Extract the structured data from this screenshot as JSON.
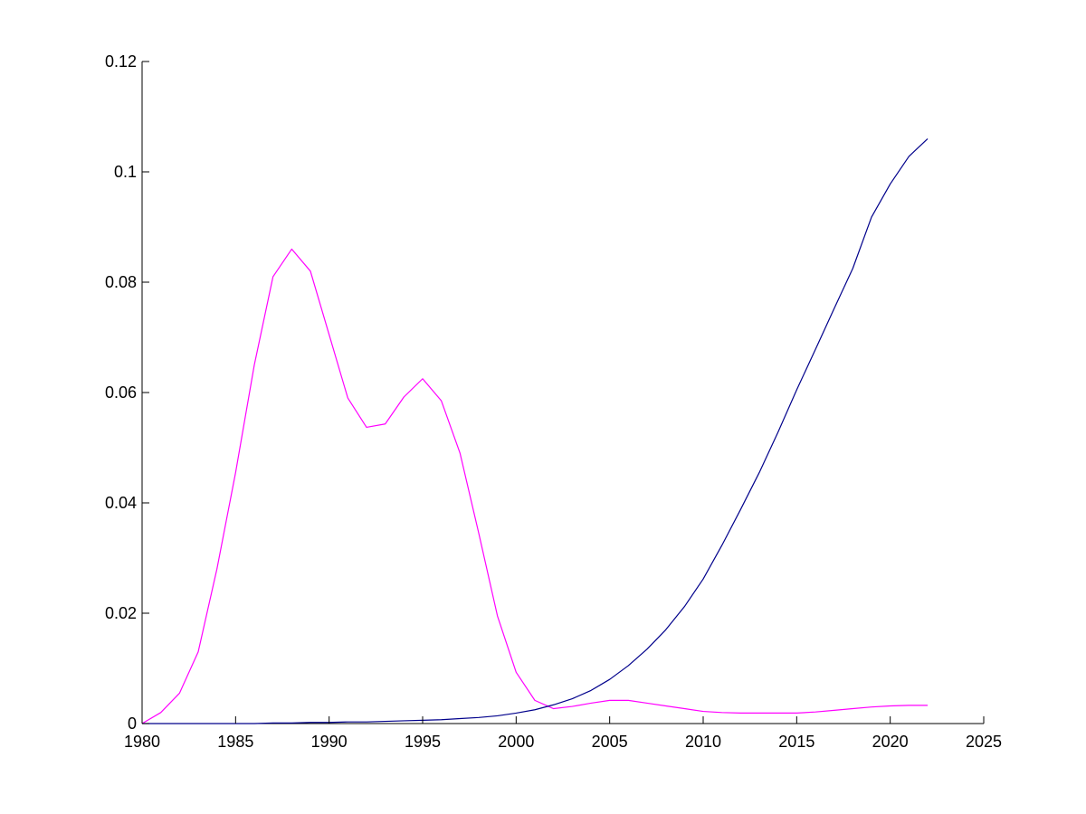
{
  "chart_data": {
    "type": "line",
    "title": "",
    "xlabel": "",
    "ylabel": "",
    "xlim": [
      1980,
      2025
    ],
    "ylim": [
      0,
      0.12
    ],
    "xticks": [
      1980,
      1985,
      1990,
      1995,
      2000,
      2005,
      2010,
      2015,
      2020,
      2025
    ],
    "xtick_labels": [
      "1980",
      "1985",
      "1990",
      "1995",
      "2000",
      "2005",
      "2010",
      "2015",
      "2020",
      "2025"
    ],
    "yticks": [
      0,
      0.02,
      0.04,
      0.06,
      0.08,
      0.1,
      0.12
    ],
    "ytick_labels": [
      "0",
      "0.02",
      "0.04",
      "0.06",
      "0.08",
      "0.1",
      "0.12"
    ],
    "grid": false,
    "legend": "none",
    "series": [
      {
        "color": "#ff00ff",
        "x": [
          1980,
          1981,
          1982,
          1983,
          1984,
          1985,
          1986,
          1987,
          1988,
          1989,
          1990,
          1991,
          1992,
          1993,
          1994,
          1995,
          1996,
          1997,
          1998,
          1999,
          2000,
          2001,
          2002,
          2003,
          2004,
          2005,
          2006,
          2007,
          2008,
          2009,
          2010,
          2011,
          2012,
          2013,
          2014,
          2015,
          2016,
          2017,
          2018,
          2019,
          2020,
          2021,
          2022
        ],
        "y": [
          0.0,
          0.002,
          0.0055,
          0.013,
          0.028,
          0.0455,
          0.065,
          0.081,
          0.086,
          0.082,
          0.0705,
          0.059,
          0.0537,
          0.0543,
          0.0592,
          0.0625,
          0.0585,
          0.049,
          0.0345,
          0.0195,
          0.0093,
          0.0042,
          0.0027,
          0.0031,
          0.0037,
          0.0042,
          0.0042,
          0.0037,
          0.0032,
          0.0027,
          0.0022,
          0.002,
          0.0019,
          0.0019,
          0.0019,
          0.0019,
          0.0021,
          0.0024,
          0.0027,
          0.003,
          0.0032,
          0.0033,
          0.0033
        ]
      },
      {
        "color": "#00008b",
        "x": [
          1980,
          1981,
          1982,
          1983,
          1984,
          1985,
          1986,
          1987,
          1988,
          1989,
          1990,
          1991,
          1992,
          1993,
          1994,
          1995,
          1996,
          1997,
          1998,
          1999,
          2000,
          2001,
          2002,
          2003,
          2004,
          2005,
          2006,
          2007,
          2008,
          2009,
          2010,
          2011,
          2012,
          2013,
          2014,
          2015,
          2016,
          2017,
          2018,
          2019,
          2020,
          2021,
          2022
        ],
        "y": [
          0.0,
          0.0,
          0.0,
          0.0,
          0.0,
          0.0,
          0.0,
          0.0001,
          0.0001,
          0.0002,
          0.0002,
          0.0003,
          0.0003,
          0.0004,
          0.0005,
          0.0006,
          0.0007,
          0.0009,
          0.0011,
          0.0014,
          0.0019,
          0.0025,
          0.0034,
          0.0045,
          0.006,
          0.008,
          0.0105,
          0.0135,
          0.017,
          0.0212,
          0.0262,
          0.0323,
          0.0388,
          0.0455,
          0.0528,
          0.0605,
          0.0678,
          0.0752,
          0.0825,
          0.0918,
          0.0978,
          0.1028,
          0.106
        ]
      }
    ]
  }
}
